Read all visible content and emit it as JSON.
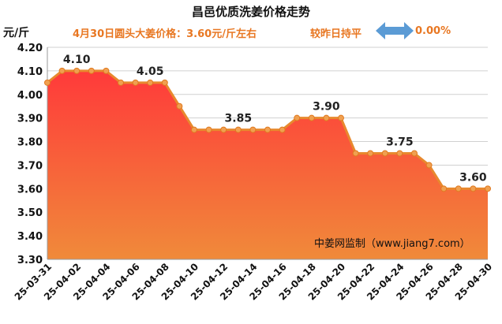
{
  "header": {
    "title": "昌邑优质洗姜价格走势",
    "unit": "元/斤",
    "price_note": "4月30日圆头大姜价格：3.60元/斤左右",
    "compare_label": "较昨日持平",
    "compare_pct": "0.00%"
  },
  "watermark": "中姜网监制（www.jiang7.com）",
  "colors": {
    "line": "#e8892e",
    "marker": "#f0a050",
    "fill_top": "#ff3a3a",
    "fill_bottom": "#f08a3a",
    "grid": "#d0d0d0",
    "arrow": "#5b9bd5",
    "accent_text": "#e87722"
  },
  "icons": {
    "compare_arrow": "double-headed-arrow-icon"
  },
  "chart_data": {
    "type": "area",
    "title": "昌邑优质洗姜价格走势",
    "ylabel": "元/斤",
    "ylim": [
      3.3,
      4.2
    ],
    "yticks": [
      "3.30",
      "3.40",
      "3.50",
      "3.60",
      "3.70",
      "3.80",
      "3.90",
      "4.00",
      "4.10",
      "4.20"
    ],
    "xtick_labels": [
      "25-03-31",
      "25-04-02",
      "25-04-04",
      "25-04-06",
      "25-04-08",
      "25-04-10",
      "25-04-12",
      "25-04-14",
      "25-04-16",
      "25-04-18",
      "25-04-20",
      "25-04-22",
      "25-04-24",
      "25-04-26",
      "25-04-28",
      "25-04-30"
    ],
    "x": [
      "25-03-31",
      "25-04-01",
      "25-04-02",
      "25-04-03",
      "25-04-04",
      "25-04-05",
      "25-04-06",
      "25-04-07",
      "25-04-08",
      "25-04-09",
      "25-04-10",
      "25-04-11",
      "25-04-12",
      "25-04-13",
      "25-04-14",
      "25-04-15",
      "25-04-16",
      "25-04-17",
      "25-04-18",
      "25-04-19",
      "25-04-20",
      "25-04-21",
      "25-04-22",
      "25-04-23",
      "25-04-24",
      "25-04-25",
      "25-04-26",
      "25-04-27",
      "25-04-28",
      "25-04-29",
      "25-04-30"
    ],
    "values": [
      4.05,
      4.1,
      4.1,
      4.1,
      4.1,
      4.05,
      4.05,
      4.05,
      4.05,
      3.95,
      3.85,
      3.85,
      3.85,
      3.85,
      3.85,
      3.85,
      3.85,
      3.9,
      3.9,
      3.9,
      3.9,
      3.75,
      3.75,
      3.75,
      3.75,
      3.75,
      3.7,
      3.6,
      3.6,
      3.6,
      3.6
    ],
    "data_labels": [
      {
        "index": 2,
        "text": "4.10"
      },
      {
        "index": 7,
        "text": "4.05"
      },
      {
        "index": 13,
        "text": "3.85"
      },
      {
        "index": 19,
        "text": "3.90"
      },
      {
        "index": 24,
        "text": "3.75"
      },
      {
        "index": 29,
        "text": "3.60"
      }
    ],
    "grid": true,
    "legend": "none"
  }
}
